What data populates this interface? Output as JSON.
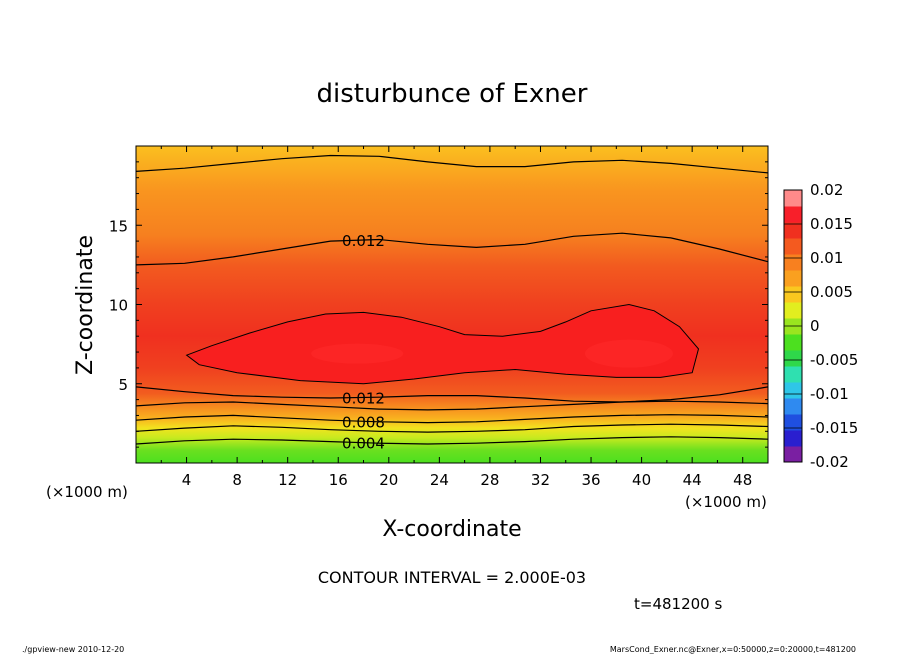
{
  "chart_data": {
    "type": "contour",
    "title": "disturbunce of Exner",
    "xlabel": "X-coordinate",
    "ylabel": "Z-coordinate",
    "x_unit_label": "(×1000 m)",
    "y_unit_label": "(×1000 m)",
    "xlim": [
      0,
      50
    ],
    "ylim": [
      0,
      20
    ],
    "x_ticks": [
      4,
      8,
      12,
      16,
      20,
      24,
      28,
      32,
      36,
      40,
      44,
      48
    ],
    "y_ticks": [
      5,
      10,
      15
    ],
    "colorbar": {
      "ticks": [
        "0.02",
        "0.015",
        "0.01",
        "0.005",
        "0",
        "-0.005",
        "-0.01",
        "-0.015",
        "-0.02"
      ],
      "range": [
        -0.02,
        0.02
      ],
      "step": 0.0025,
      "colors": [
        "#7a1fa2",
        "#2a1fcf",
        "#1f4fe0",
        "#2f8af0",
        "#2fc6e8",
        "#2fe0b0",
        "#2fd84a",
        "#4ce01f",
        "#9ae51f",
        "#e2ee1f",
        "#fac81f",
        "#faa01f",
        "#f8801f",
        "#f45a1f",
        "#f0301f",
        "#f81f2a",
        "#ff8a8a"
      ]
    },
    "contour_lines": [
      {
        "level": 0.004,
        "label": "0.004",
        "z": [
          1.2,
          1.4,
          1.5,
          1.45,
          1.35,
          1.25,
          1.2,
          1.25,
          1.35,
          1.5,
          1.6,
          1.65,
          1.6,
          1.5
        ]
      },
      {
        "level": 0.006,
        "label": "",
        "z": [
          2.0,
          2.2,
          2.35,
          2.25,
          2.1,
          2.0,
          1.95,
          2.0,
          2.1,
          2.3,
          2.4,
          2.45,
          2.4,
          2.3
        ]
      },
      {
        "level": 0.008,
        "label": "0.008",
        "z": [
          2.7,
          2.9,
          3.0,
          2.85,
          2.7,
          2.6,
          2.55,
          2.6,
          2.75,
          2.9,
          3.0,
          3.05,
          3.0,
          2.9
        ]
      },
      {
        "level": 0.01,
        "label": "",
        "z": [
          3.6,
          3.8,
          3.85,
          3.7,
          3.55,
          3.4,
          3.35,
          3.4,
          3.55,
          3.7,
          3.85,
          3.9,
          3.85,
          3.75
        ]
      },
      {
        "level": 0.012,
        "label": "0.012",
        "z": [
          4.8,
          4.5,
          4.25,
          4.15,
          4.1,
          4.15,
          4.25,
          4.25,
          4.1,
          3.9,
          3.85,
          4.0,
          4.3,
          4.8
        ]
      },
      {
        "level": 0.012,
        "label": "0.012",
        "z": [
          12.5,
          12.6,
          13.0,
          13.5,
          14.0,
          14.1,
          13.8,
          13.6,
          13.8,
          14.3,
          14.5,
          14.2,
          13.5,
          12.7
        ]
      },
      {
        "level": 0.01,
        "label": "",
        "z": [
          18.4,
          18.6,
          18.9,
          19.2,
          19.4,
          19.35,
          19.0,
          18.7,
          18.7,
          19.0,
          19.1,
          18.9,
          18.6,
          18.3
        ]
      }
    ],
    "contour_label_x": 18,
    "closed_contour": {
      "level": 0.014,
      "points": [
        [
          4,
          6.8
        ],
        [
          6,
          7.4
        ],
        [
          9,
          8.2
        ],
        [
          12,
          8.9
        ],
        [
          15,
          9.4
        ],
        [
          18,
          9.5
        ],
        [
          21,
          9.2
        ],
        [
          24,
          8.6
        ],
        [
          26,
          8.1
        ],
        [
          29,
          8.0
        ],
        [
          32,
          8.3
        ],
        [
          34,
          8.9
        ],
        [
          36,
          9.6
        ],
        [
          39,
          10.0
        ],
        [
          41,
          9.6
        ],
        [
          43,
          8.6
        ],
        [
          44.5,
          7.2
        ],
        [
          44,
          5.7
        ],
        [
          41.5,
          5.4
        ],
        [
          38,
          5.4
        ],
        [
          34,
          5.6
        ],
        [
          30,
          5.9
        ],
        [
          26,
          5.7
        ],
        [
          22,
          5.3
        ],
        [
          18,
          5.0
        ],
        [
          13,
          5.2
        ],
        [
          8,
          5.7
        ],
        [
          5,
          6.2
        ],
        [
          4,
          6.8
        ]
      ]
    },
    "contour_interval": "CONTOUR INTERVAL = 2.000E-03",
    "time": "t=481200 s"
  },
  "footer": {
    "left": "./gpview-new  2010-12-20",
    "right": "MarsCond_Exner.nc@Exner,x=0:50000,z=0:20000,t=481200"
  }
}
